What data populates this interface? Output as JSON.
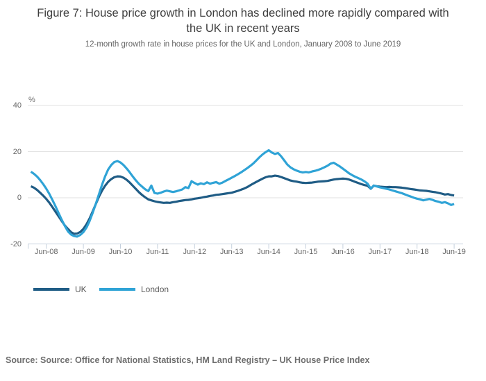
{
  "header": {
    "title": "Figure 7: House price growth in London has declined more rapidly compared with the UK in recent years",
    "subtitle": "12-month growth rate in house prices for the UK and London, January 2008 to June 2019"
  },
  "footer": {
    "source": "Source: Source: Office for National Statistics, HM Land Registry – UK House Price Index"
  },
  "colors": {
    "uk_line": "#1f5c85",
    "london_line": "#2fa3d6",
    "gridline": "#e2e2e2",
    "axis": "#c5d0dd",
    "text_muted": "#666666"
  },
  "chart_data": {
    "type": "line",
    "title": "Figure 7: House price growth in London has declined more rapidly compared with the UK in recent years",
    "subtitle": "12-month growth rate in house prices for the UK and London, January 2008 to June 2019",
    "unit_label": "%",
    "grid": "horizontal",
    "legend_position": "bottom-left",
    "x_start": "2008-01",
    "x_end": "2019-06",
    "frequency": "monthly",
    "x_tick_labels": [
      "Jun-08",
      "Jun-09",
      "Jun-10",
      "Jun-11",
      "Jun-12",
      "Jun-13",
      "Jun-14",
      "Jun-15",
      "Jun-16",
      "Jun-17",
      "Jun-18",
      "Jun-19"
    ],
    "y_ticks": [
      40,
      20,
      0,
      -20
    ],
    "ylim": [
      -20,
      40
    ],
    "series": [
      {
        "name": "UK",
        "color": "#1f5c85",
        "values": [
          5.0,
          4.4,
          3.4,
          2.2,
          0.9,
          -0.5,
          -2.2,
          -4.1,
          -6.1,
          -8.1,
          -10.1,
          -12.0,
          -13.5,
          -14.9,
          -15.6,
          -15.5,
          -14.8,
          -13.5,
          -11.5,
          -9.0,
          -6.0,
          -2.8,
          0.4,
          3.0,
          5.2,
          6.9,
          8.1,
          8.9,
          9.3,
          9.2,
          8.7,
          7.8,
          6.6,
          5.2,
          3.8,
          2.4,
          1.2,
          0.2,
          -0.7,
          -1.1,
          -1.5,
          -1.8,
          -2.0,
          -2.2,
          -2.1,
          -2.2,
          -1.9,
          -1.7,
          -1.4,
          -1.2,
          -1.0,
          -0.9,
          -0.7,
          -0.4,
          -0.2,
          0.0,
          0.3,
          0.5,
          0.8,
          1.0,
          1.3,
          1.4,
          1.6,
          1.8,
          2.0,
          2.2,
          2.6,
          3.0,
          3.5,
          4.0,
          4.6,
          5.4,
          6.2,
          6.9,
          7.6,
          8.3,
          8.9,
          9.3,
          9.3,
          9.6,
          9.4,
          9.0,
          8.5,
          8.0,
          7.5,
          7.2,
          7.0,
          6.7,
          6.5,
          6.4,
          6.5,
          6.6,
          6.8,
          7.0,
          7.1,
          7.2,
          7.3,
          7.6,
          7.9,
          8.1,
          8.2,
          8.3,
          8.2,
          7.9,
          7.4,
          6.9,
          6.4,
          5.9,
          5.5,
          5.2,
          3.9,
          5.3,
          5.0,
          4.8,
          4.7,
          4.6,
          4.7,
          4.6,
          4.6,
          4.5,
          4.4,
          4.2,
          4.0,
          3.8,
          3.6,
          3.4,
          3.2,
          3.1,
          3.0,
          2.8,
          2.6,
          2.4,
          2.1,
          1.8,
          1.4,
          1.6,
          1.2,
          1.0
        ]
      },
      {
        "name": "London",
        "color": "#2fa3d6",
        "values": [
          11.3,
          10.4,
          9.2,
          7.7,
          5.9,
          3.9,
          1.6,
          -1.0,
          -3.8,
          -6.7,
          -9.6,
          -12.2,
          -14.6,
          -15.9,
          -16.6,
          -16.8,
          -16.1,
          -14.9,
          -12.9,
          -10.1,
          -6.6,
          -2.7,
          1.4,
          5.5,
          9.2,
          12.2,
          14.2,
          15.5,
          15.9,
          15.3,
          14.2,
          12.7,
          11.0,
          9.2,
          7.5,
          6.0,
          4.8,
          3.7,
          2.9,
          5.3,
          2.1,
          1.8,
          2.2,
          2.7,
          3.1,
          2.8,
          2.5,
          2.8,
          3.2,
          3.6,
          4.6,
          4.2,
          7.2,
          6.4,
          5.7,
          6.3,
          5.9,
          6.7,
          6.1,
          6.5,
          6.8,
          6.1,
          6.6,
          7.3,
          8.0,
          8.7,
          9.4,
          10.2,
          11.0,
          11.9,
          12.8,
          13.8,
          14.9,
          16.2,
          17.6,
          18.8,
          19.8,
          20.6,
          19.6,
          19.0,
          19.4,
          18.0,
          16.2,
          14.4,
          13.2,
          12.4,
          11.8,
          11.3,
          11.0,
          11.2,
          11.0,
          11.4,
          11.7,
          12.1,
          12.6,
          13.2,
          13.9,
          14.8,
          15.2,
          14.4,
          13.6,
          12.6,
          11.6,
          10.6,
          9.8,
          9.1,
          8.5,
          7.9,
          7.1,
          6.1,
          4.0,
          5.3,
          4.9,
          4.5,
          4.2,
          3.9,
          3.6,
          3.2,
          2.8,
          2.4,
          2.0,
          1.5,
          1.0,
          0.5,
          0.0,
          -0.4,
          -0.7,
          -1.1,
          -0.8,
          -0.5,
          -0.9,
          -1.4,
          -1.7,
          -2.2,
          -1.9,
          -2.4,
          -3.1,
          -2.7
        ]
      }
    ]
  }
}
